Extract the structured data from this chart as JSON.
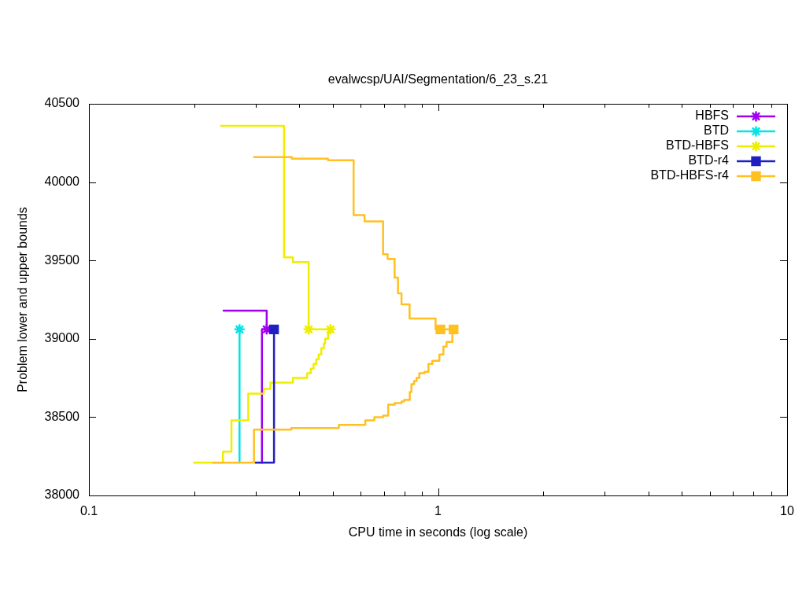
{
  "chart_data": {
    "type": "step",
    "title": "evalwcsp/UAI/Segmentation/6_23_s.21",
    "xlabel": "CPU time in seconds (log scale)",
    "ylabel": "Problem lower and upper bounds",
    "log": "x",
    "legend": "top right",
    "xlim": [
      0.1,
      10
    ],
    "xticks": [
      0.1,
      {
        "value": 0.2,
        "label": null
      },
      {
        "value": 0.3,
        "label": null
      },
      {
        "value": 0.4,
        "label": null
      },
      {
        "value": 0.5,
        "label": null
      },
      {
        "value": 0.6,
        "label": null
      },
      {
        "value": 0.7,
        "label": null
      },
      {
        "value": 0.8,
        "label": null
      },
      {
        "value": 0.9,
        "label": null
      },
      1,
      {
        "value": 2,
        "label": null
      },
      {
        "value": 3,
        "label": null
      },
      {
        "value": 4,
        "label": null
      },
      {
        "value": 5,
        "label": null
      },
      {
        "value": 6,
        "label": null
      },
      {
        "value": 7,
        "label": null
      },
      {
        "value": 8,
        "label": null
      },
      {
        "value": 9,
        "label": null
      },
      10
    ],
    "ylim": [
      38000,
      40500
    ],
    "yticks": [
      38000,
      38500,
      39000,
      39500,
      40000,
      40500
    ],
    "series": [
      {
        "name": "HBFS",
        "color": "#a000f0",
        "x": [
          0.243,
          0.323
        ],
        "values": [
          39180,
          39060
        ]
      },
      {
        "color": "#a000f0",
        "x": [
          0.313,
          0.313,
          0.323
        ],
        "values": [
          38210,
          39060,
          39060
        ]
      },
      {
        "type": "scatter",
        "color": "#a000f0",
        "marker": "cross",
        "x": [
          0.323
        ],
        "values": [
          39060
        ]
      },
      {
        "name": "BTD",
        "color": "#00e5e5",
        "x": [
          0.27,
          0.27
        ],
        "values": [
          38210,
          39060
        ]
      },
      {
        "type": "scatter",
        "color": "#00e5e5",
        "marker": "cross",
        "x": [
          0.27
        ],
        "values": [
          39060
        ]
      },
      {
        "name": "BTD-HBFS",
        "color": "#eeee00",
        "x": [
          0.239,
          0.362,
          0.384,
          0.426,
          0.492
        ],
        "values": [
          40360,
          39520,
          39490,
          39060,
          39060
        ]
      },
      {
        "color": "#eeee00",
        "x": [
          0.2,
          0.242,
          0.256,
          0.286,
          0.317,
          0.331,
          0.384,
          0.422,
          0.432,
          0.44,
          0.448,
          0.455,
          0.463,
          0.471,
          0.475,
          0.484,
          0.492
        ],
        "values": [
          38210,
          38280,
          38480,
          38650,
          38680,
          38720,
          38750,
          38780,
          38810,
          38840,
          38870,
          38900,
          38940,
          38970,
          39000,
          39040,
          39060
        ]
      },
      {
        "type": "scatter",
        "color": "#eeee00",
        "marker": "cross",
        "x": [
          0.426,
          0.492
        ],
        "values": [
          39060,
          39060
        ]
      },
      {
        "name": "BTD-r4",
        "color": "#2020c0",
        "x": [
          0.3,
          0.339
        ],
        "values": [
          38210,
          39060
        ]
      },
      {
        "type": "scatter",
        "color": "#2020c0",
        "marker": "square",
        "x": [
          0.339
        ],
        "values": [
          39060
        ]
      },
      {
        "name": "BTD-HBFS-r4",
        "color": "#ffc020",
        "x": [
          0.297,
          0.381,
          0.484,
          0.573,
          0.616,
          0.696,
          0.717,
          0.751,
          0.768,
          0.786,
          0.829,
          0.984,
          1.108
        ],
        "values": [
          40160,
          40150,
          40140,
          39790,
          39750,
          39540,
          39510,
          39390,
          39290,
          39220,
          39130,
          39060,
          39060
        ]
      },
      {
        "color": "#ffc020",
        "x": [
          0.227,
          0.297,
          0.38,
          0.52,
          0.619,
          0.657,
          0.696,
          0.72,
          0.752,
          0.786,
          0.8,
          0.83,
          0.839,
          0.854,
          0.868,
          0.884,
          0.915,
          0.939,
          0.963,
          1.009,
          1.036,
          1.058,
          1.099
        ],
        "values": [
          38210,
          38420,
          38430,
          38450,
          38480,
          38500,
          38510,
          38580,
          38590,
          38600,
          38610,
          38660,
          38710,
          38730,
          38750,
          38780,
          38790,
          38840,
          38860,
          38900,
          38950,
          38980,
          39060
        ]
      },
      {
        "type": "scatter",
        "color": "#ffc020",
        "marker": "square",
        "x": [
          1.016,
          1.108
        ],
        "values": [
          39060,
          39060
        ]
      }
    ]
  }
}
